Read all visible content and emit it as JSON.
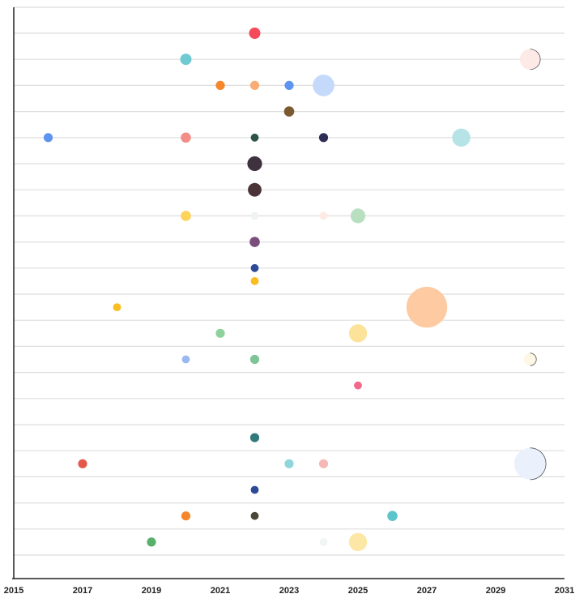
{
  "chart_data": {
    "type": "scatter",
    "xlim": [
      2015,
      2031
    ],
    "x_tick_labels": [
      "2015",
      "2017",
      "2019",
      "2021",
      "2023",
      "2025",
      "2027",
      "2029",
      "2031"
    ],
    "rows": 21,
    "grid": true,
    "legend": "none",
    "points": [
      {
        "row": 1,
        "x": 2022,
        "size": 1.0,
        "color": "#f44a5a"
      },
      {
        "row": 2,
        "x": 2020,
        "size": 1.0,
        "color": "#6fcbd1"
      },
      {
        "row": 2,
        "x": 2030,
        "size": 1.8,
        "color": "#fde9e6"
      },
      {
        "row": 3,
        "x": 2021,
        "size": 0.8,
        "color": "#f6872a"
      },
      {
        "row": 3,
        "x": 2022,
        "size": 0.8,
        "color": "#f9ad74"
      },
      {
        "row": 3,
        "x": 2023,
        "size": 0.8,
        "color": "#5e94ef"
      },
      {
        "row": 3,
        "x": 2024,
        "size": 1.9,
        "color": "#c5d9fa"
      },
      {
        "row": 4,
        "x": 2023,
        "size": 0.9,
        "color": "#7a5a2e"
      },
      {
        "row": 5,
        "x": 2016,
        "size": 0.8,
        "color": "#5e94ef"
      },
      {
        "row": 5,
        "x": 2020,
        "size": 0.9,
        "color": "#f28d88"
      },
      {
        "row": 5,
        "x": 2022,
        "size": 0.7,
        "color": "#2e5447"
      },
      {
        "row": 5,
        "x": 2024,
        "size": 0.8,
        "color": "#2e2d55"
      },
      {
        "row": 5,
        "x": 2028,
        "size": 1.6,
        "color": "#b5e3e6"
      },
      {
        "row": 6,
        "x": 2022,
        "size": 1.3,
        "color": "#3f323f"
      },
      {
        "row": 7,
        "x": 2022,
        "size": 1.2,
        "color": "#4a3438"
      },
      {
        "row": 8,
        "x": 2020,
        "size": 0.9,
        "color": "#fdd35b"
      },
      {
        "row": 8,
        "x": 2022,
        "size": 0.7,
        "color": "#eef4ef"
      },
      {
        "row": 8,
        "x": 2024,
        "size": 0.7,
        "color": "#fdeae4"
      },
      {
        "row": 8,
        "x": 2025,
        "size": 1.3,
        "color": "#b8e0c0"
      },
      {
        "row": 9,
        "x": 2022,
        "size": 0.9,
        "color": "#7b4f7c"
      },
      {
        "row": 10,
        "x": 2022,
        "size": 0.7,
        "color": "#2d4a96"
      },
      {
        "row": 10.5,
        "x": 2022,
        "size": 0.7,
        "color": "#fbbd1f"
      },
      {
        "row": 11.5,
        "x": 2018,
        "size": 0.7,
        "color": "#fbbd1f"
      },
      {
        "row": 11.5,
        "x": 2027,
        "size": 3.6,
        "color": "#fdcaa2"
      },
      {
        "row": 12.5,
        "x": 2021,
        "size": 0.8,
        "color": "#8fd19a"
      },
      {
        "row": 12.5,
        "x": 2025,
        "size": 1.6,
        "color": "#fde39a"
      },
      {
        "row": 13.5,
        "x": 2020,
        "size": 0.7,
        "color": "#9ab9ef"
      },
      {
        "row": 13.5,
        "x": 2022,
        "size": 0.8,
        "color": "#7fc497"
      },
      {
        "row": 13.5,
        "x": 2030,
        "size": 1.1,
        "color": "#fdf7e3"
      },
      {
        "row": 14.5,
        "x": 2025,
        "size": 0.7,
        "color": "#f26a8b"
      },
      {
        "row": 16.5,
        "x": 2022,
        "size": 0.8,
        "color": "#327a7a"
      },
      {
        "row": 17.5,
        "x": 2017,
        "size": 0.8,
        "color": "#e4584c"
      },
      {
        "row": 17.5,
        "x": 2023,
        "size": 0.8,
        "color": "#8ed6dc"
      },
      {
        "row": 17.5,
        "x": 2024,
        "size": 0.8,
        "color": "#f6b8b4"
      },
      {
        "row": 17.5,
        "x": 2030,
        "size": 2.8,
        "color": "#eaf0fc"
      },
      {
        "row": 18.5,
        "x": 2022,
        "size": 0.7,
        "color": "#2d4a96"
      },
      {
        "row": 19.5,
        "x": 2020,
        "size": 0.8,
        "color": "#f6872a"
      },
      {
        "row": 19.5,
        "x": 2022,
        "size": 0.7,
        "color": "#4a4636"
      },
      {
        "row": 19.5,
        "x": 2026,
        "size": 0.9,
        "color": "#5cc5cb"
      },
      {
        "row": 20.5,
        "x": 2019,
        "size": 0.8,
        "color": "#58b06a"
      },
      {
        "row": 20.5,
        "x": 2024,
        "size": 0.7,
        "color": "#f1f6f3"
      },
      {
        "row": 20.5,
        "x": 2025,
        "size": 1.6,
        "color": "#fde7a6"
      }
    ]
  }
}
